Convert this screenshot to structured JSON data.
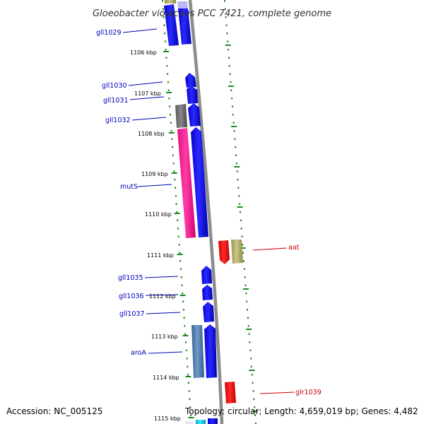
{
  "title": "Gloeobacter violaceus PCC 7421, complete genome",
  "colors": {
    "tick": "#1a8a1a",
    "backbone": "#8c8c8c",
    "blue_gene": "#0a00f0",
    "pink_gene": "#ff1e96",
    "gray_gene": "#6e6e6e",
    "khaki_gene": "#b4ae6e",
    "red_gene": "#ff0000",
    "steel_gene": "#4678aa",
    "cyan_gene": "#00d2e6",
    "label_blue": "#0000bb",
    "label_red": "#cc0000"
  },
  "ticks": [
    {
      "label": "1106 kbp"
    },
    {
      "label": "1107 kbp"
    },
    {
      "label": "1108 kbp"
    },
    {
      "label": "1109 kbp"
    },
    {
      "label": "1110 kbp"
    },
    {
      "label": "1111 kbp"
    },
    {
      "label": "1112 kbp"
    },
    {
      "label": "1113 kbp"
    },
    {
      "label": "1114 kbp"
    },
    {
      "label": "1115 kbp"
    }
  ],
  "gene_labels": [
    {
      "name": "gll1029",
      "strand": "minus"
    },
    {
      "name": "gll1030",
      "strand": "minus"
    },
    {
      "name": "gll1031",
      "strand": "minus"
    },
    {
      "name": "gll1032",
      "strand": "minus"
    },
    {
      "name": "mutS",
      "strand": "minus"
    },
    {
      "name": "aat",
      "strand": "plus"
    },
    {
      "name": "gll1035",
      "strand": "minus"
    },
    {
      "name": "gll1036",
      "strand": "minus"
    },
    {
      "name": "gll1037",
      "strand": "minus"
    },
    {
      "name": "aroA",
      "strand": "minus"
    },
    {
      "name": "glr1039",
      "strand": "plus"
    }
  ],
  "footer": {
    "accession": "Accession: NC_005125",
    "topology": "Topology: circular; Length: 4,659,019 bp; Genes: 4,482"
  }
}
